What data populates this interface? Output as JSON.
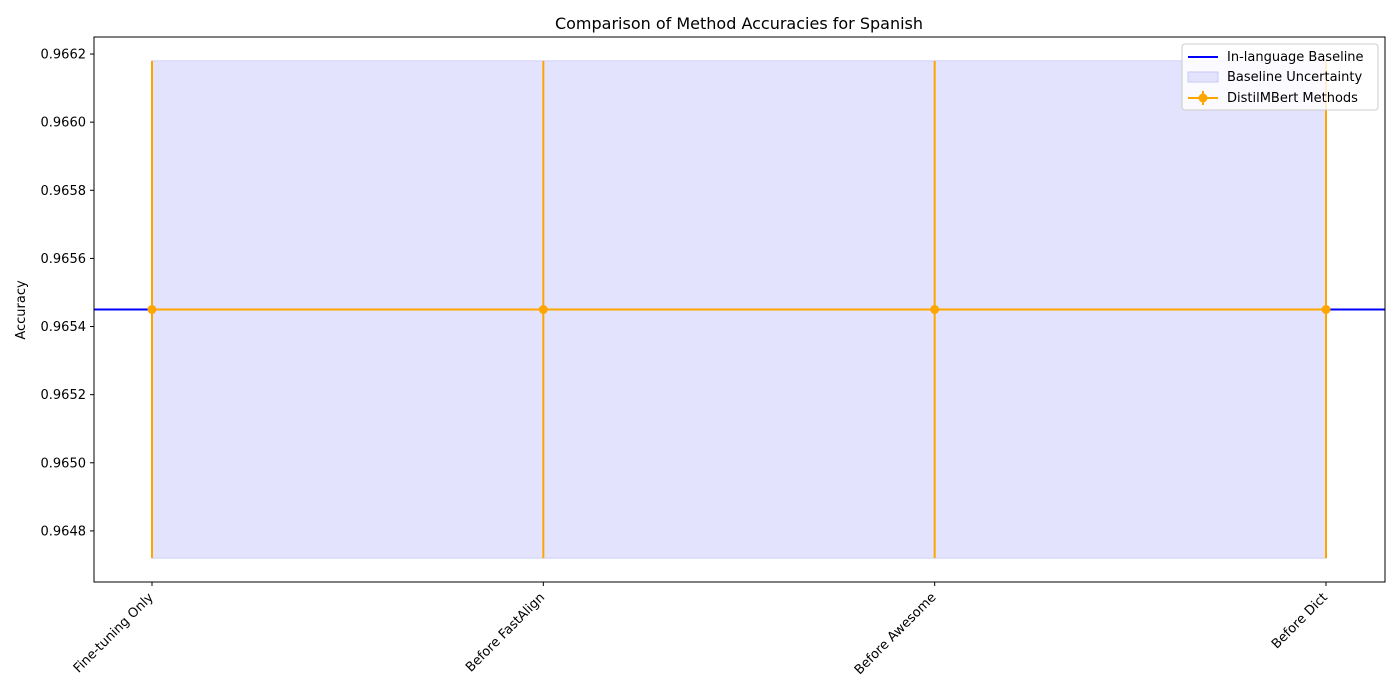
{
  "chart_data": {
    "type": "line",
    "title": "Comparison of Method Accuracies for Spanish",
    "xlabel": "",
    "ylabel": "Accuracy",
    "categories": [
      "Fine-tuning Only",
      "Before FastAlign",
      "Before Awesome",
      "Before Dict"
    ],
    "series": [
      {
        "name": "DistilMBert Methods",
        "values": [
          0.96545,
          0.96545,
          0.96545,
          0.96545
        ],
        "error": [
          0.00073,
          0.00073,
          0.00073,
          0.00073
        ],
        "color": "#ffa500"
      }
    ],
    "baseline": {
      "name": "In-language Baseline",
      "value": 0.96545,
      "color": "#0000ff"
    },
    "baseline_band": {
      "name": "Baseline Uncertainty",
      "low": 0.96472,
      "high": 0.96618,
      "color": "#e3e3fd"
    },
    "ylim": [
      0.96465,
      0.96625
    ],
    "yticks": [
      "0.9648",
      "0.9650",
      "0.9652",
      "0.9654",
      "0.9656",
      "0.9658",
      "0.9660",
      "0.9662"
    ],
    "legend_position": "top-right",
    "grid": false
  }
}
